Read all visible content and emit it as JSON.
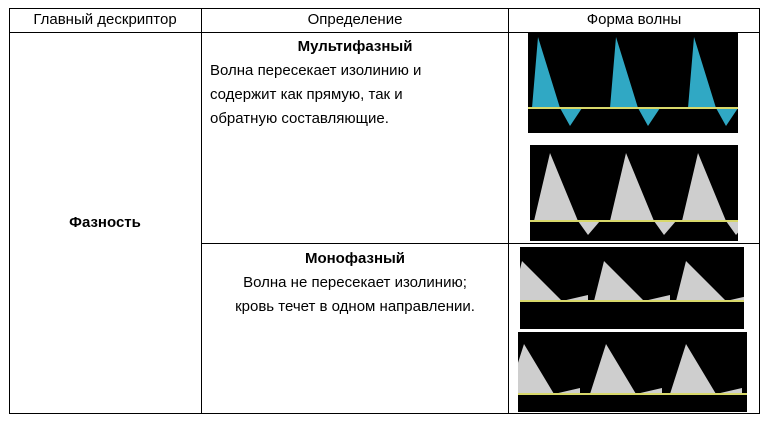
{
  "table": {
    "headers": {
      "descriptor": "Главный дескриптор",
      "definition": "Определение",
      "waveform": "Форма волны"
    },
    "row": {
      "descriptor": "Фазность",
      "multiphasic": {
        "title": "Мультифазный",
        "lines": [
          "Волна пересекает изолинию и",
          "содержит как прямую, так и",
          "обратную составляющие."
        ]
      },
      "monophasic": {
        "title": "Монофазный",
        "lines": [
          "Волна не пересекает изолинию;",
          "кровь течет в одном направлении."
        ]
      }
    },
    "waveforms": [
      {
        "kind": "multiphasic",
        "color": "#38c6e6",
        "baseline_color": "#d8d86a"
      },
      {
        "kind": "multiphasic",
        "color": "#f2f2f2",
        "baseline_color": "#d8d86a"
      },
      {
        "kind": "monophasic",
        "color": "#f2f2f2",
        "baseline_color": "#d8d86a"
      },
      {
        "kind": "monophasic",
        "color": "#f2f2f2",
        "baseline_color": "#d8d86a"
      }
    ]
  }
}
